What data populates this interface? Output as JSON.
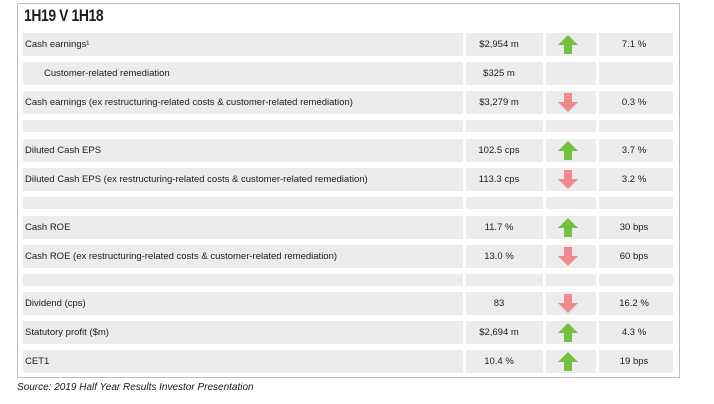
{
  "title": "1H19 V 1H18",
  "source": "Source: 2019 Half Year Results Investor Presentation",
  "colors": {
    "up_arrow": "#74c043",
    "down_arrow": "#f08a8f",
    "row_bg": "#ececec"
  },
  "rows": [
    {
      "label": "Cash earnings¹",
      "value": "$2,954 m",
      "direction": "up",
      "change": "7.1 %"
    },
    {
      "label": "Customer-related remediation",
      "value": "$325 m",
      "direction": "none",
      "change": ""
    },
    {
      "label": "Cash earnings (ex restructuring-related costs & customer-related remediation)",
      "value": "$3,279 m",
      "direction": "down",
      "change": "0.3 %"
    },
    {
      "label": "Diluted Cash EPS",
      "value": "102.5 cps",
      "direction": "up",
      "change": "3.7 %"
    },
    {
      "label": "Diluted Cash EPS (ex restructuring-related costs & customer-related remediation)",
      "value": "113.3 cps",
      "direction": "down",
      "change": "3.2 %"
    },
    {
      "label": "Cash ROE",
      "value": "11.7 %",
      "direction": "up",
      "change": "30 bps"
    },
    {
      "label": "Cash ROE (ex restructuring-related costs & customer-related remediation)",
      "value": "13.0 %",
      "direction": "down",
      "change": "60 bps"
    },
    {
      "label": "Dividend (cps)",
      "value": "83",
      "direction": "down",
      "change": "16.2 %"
    },
    {
      "label": "Statutory profit ($m)",
      "value": "$2,694 m",
      "direction": "up",
      "change": "4.3 %"
    },
    {
      "label": "CET1",
      "value": "10.4 %",
      "direction": "up",
      "change": "19 bps"
    }
  ]
}
